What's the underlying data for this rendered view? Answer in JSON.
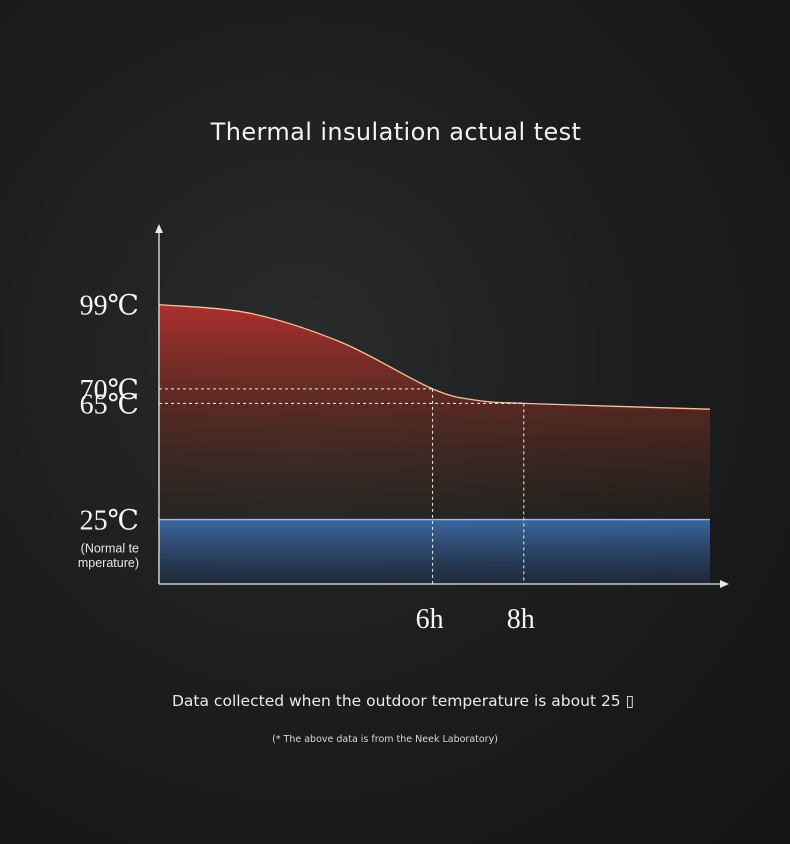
{
  "chart_data": {
    "type": "area",
    "title": "Thermal insulation actual test",
    "x_ticks": [
      "6h",
      "8h"
    ],
    "series": [
      {
        "x": [
          0,
          2,
          4,
          6,
          7,
          8,
          10,
          12
        ],
        "y": [
          99,
          96,
          86,
          70,
          66,
          65,
          64,
          63
        ]
      }
    ],
    "reference": {
      "value": 25,
      "label": "25℃",
      "sublabel_lines": [
        "(Normal te",
        "mperature)"
      ]
    },
    "y_labels": [
      {
        "value": 99,
        "text": "99℃"
      },
      {
        "value": 70,
        "text": "70℃"
      },
      {
        "value": 65,
        "text": "65℃"
      },
      {
        "value": 25,
        "text": "25℃"
      }
    ],
    "guides": [
      {
        "x": 6,
        "y": 70
      },
      {
        "x": 8,
        "y": 65
      }
    ],
    "colors": {
      "hot": "#b3302d",
      "curve": "#f4c39a",
      "cold": "#3e6fae",
      "cold_line": "#8fc2f2"
    }
  },
  "note": "Data collected when the outdoor temperature is about 25 ▯",
  "source": "(* The above data is from the Neek Laboratory)"
}
